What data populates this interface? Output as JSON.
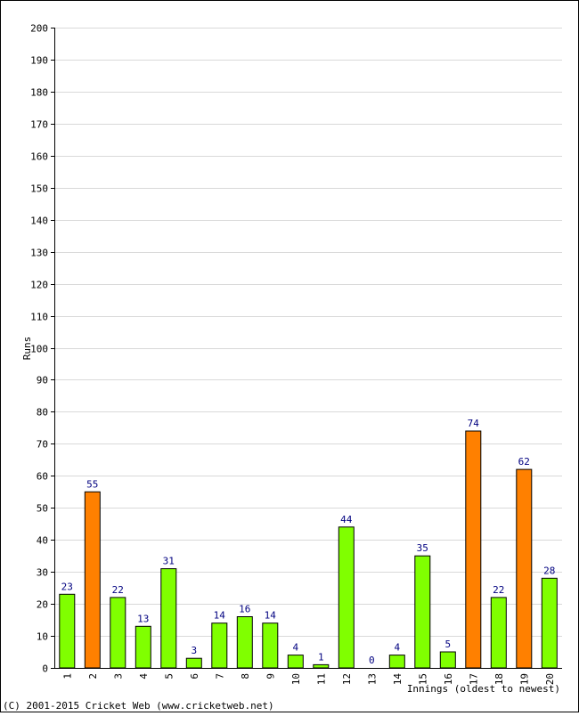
{
  "chart_data": {
    "type": "bar",
    "title": "",
    "xlabel": "Innings (oldest to newest)",
    "ylabel": "Runs",
    "ylim": [
      0,
      200
    ],
    "ytick_step": 10,
    "grid": true,
    "categories": [
      "1",
      "2",
      "3",
      "4",
      "5",
      "6",
      "7",
      "8",
      "9",
      "10",
      "11",
      "12",
      "13",
      "14",
      "15",
      "16",
      "17",
      "18",
      "19",
      "20"
    ],
    "values": [
      23,
      55,
      22,
      13,
      31,
      3,
      14,
      16,
      14,
      4,
      1,
      44,
      0,
      4,
      35,
      5,
      74,
      22,
      62,
      28
    ],
    "bar_kinds": [
      "other",
      "fifty",
      "other",
      "other",
      "other",
      "other",
      "other",
      "other",
      "other",
      "other",
      "other",
      "other",
      "other",
      "other",
      "other",
      "other",
      "fifty",
      "other",
      "fifty",
      "other"
    ],
    "colors": {
      "other": "#80ff00",
      "fifty": "#ff8000",
      "data_label": "#000080",
      "grid": "#d9d9d9"
    }
  },
  "footer": {
    "copyright": "(C) 2001-2015 Cricket Web (www.cricketweb.net)"
  }
}
